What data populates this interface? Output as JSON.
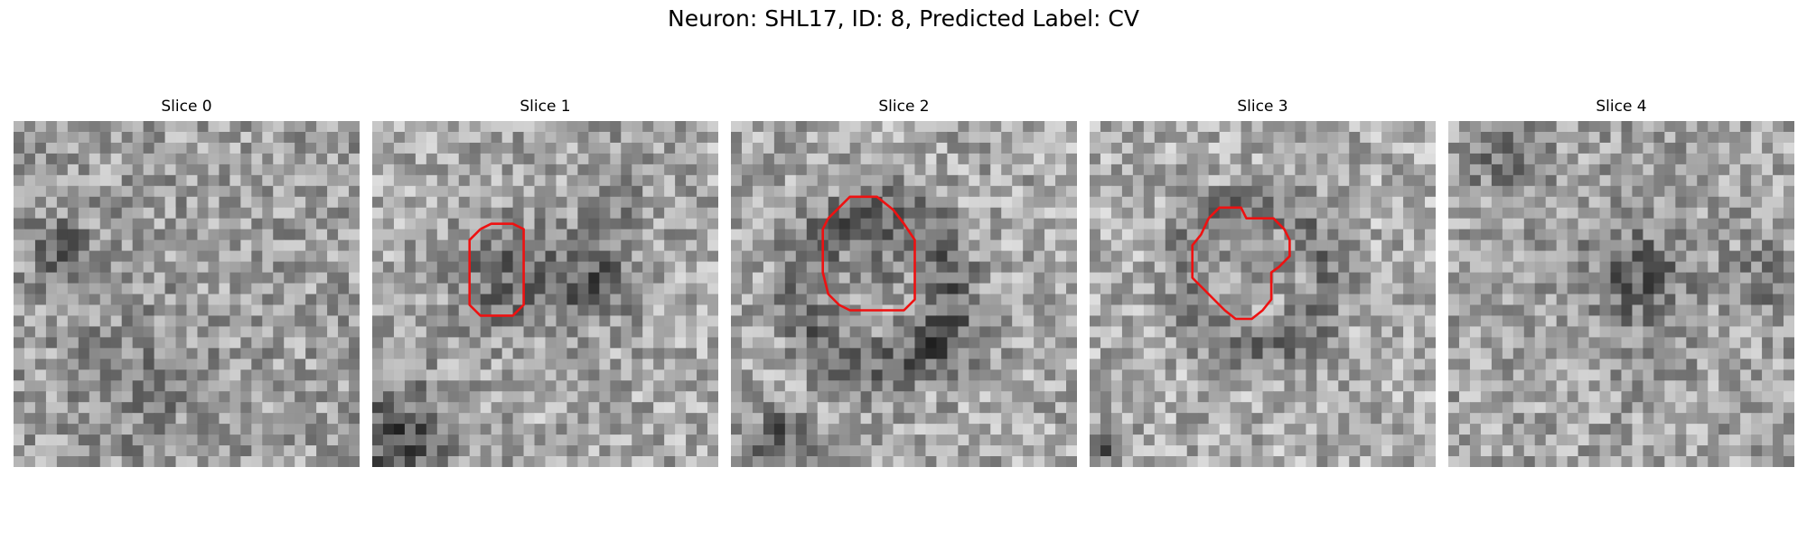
{
  "figure": {
    "title": "Neuron: SHL17, ID: 8, Predicted Label: CV"
  },
  "colors": {
    "background": "#ffffff",
    "contour": "#ee1111",
    "colormap": "gray"
  },
  "panels": [
    {
      "title": "Slice 0",
      "has_contour": false
    },
    {
      "title": "Slice 1",
      "has_contour": true
    },
    {
      "title": "Slice 2",
      "has_contour": true
    },
    {
      "title": "Slice 3",
      "has_contour": true
    },
    {
      "title": "Slice 4",
      "has_contour": false
    }
  ]
}
